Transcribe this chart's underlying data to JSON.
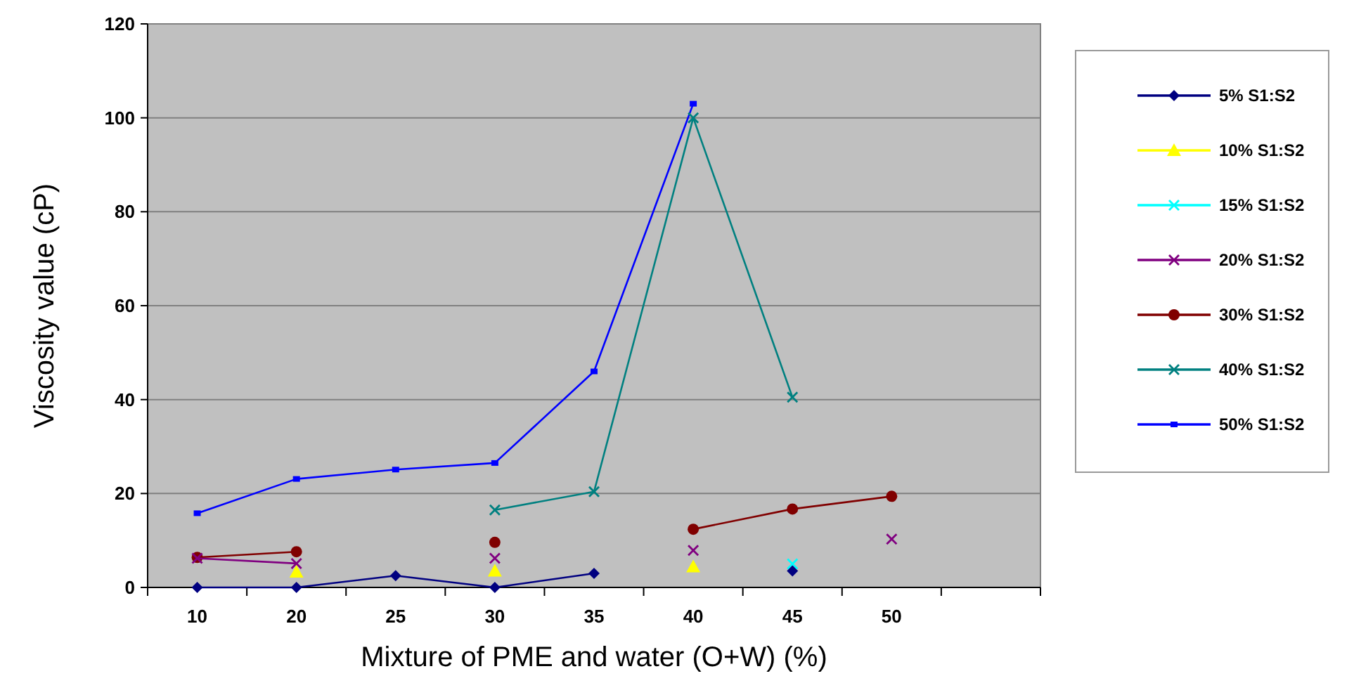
{
  "chart_data": {
    "type": "line",
    "xlabel": "Mixture of PME and water (O+W) (%)",
    "ylabel": "Viscosity value (cP)",
    "categories": [
      "10",
      "20",
      "25",
      "30",
      "35",
      "40",
      "45",
      "50",
      null
    ],
    "ylim": [
      0,
      120
    ],
    "yticks": [
      0,
      20,
      40,
      60,
      80,
      100,
      120
    ],
    "grid": "y",
    "legend": "right",
    "line_style": "solid",
    "series": [
      {
        "name": "5% S1:S2",
        "color": "#000080",
        "marker": "diamond",
        "values": [
          0,
          0,
          2.5,
          0,
          3,
          null,
          3.5,
          null,
          null
        ]
      },
      {
        "name": "10% S1:S2",
        "type": "scatter",
        "color": "#ffff00",
        "marker": "triangle",
        "values": [
          null,
          3.3,
          null,
          3.5,
          null,
          4.4,
          null,
          null,
          null
        ]
      },
      {
        "name": "15% S1:S2",
        "type": "scatter",
        "color": "#00ffff",
        "marker": "cross",
        "values": [
          null,
          null,
          null,
          null,
          null,
          null,
          5,
          null,
          null
        ]
      },
      {
        "name": "20% S1:S2",
        "color": "#800080",
        "marker": "cross",
        "values": [
          6.2,
          5.1,
          null,
          6.2,
          null,
          7.9,
          null,
          10.3,
          null
        ]
      },
      {
        "name": "30% S1:S2",
        "color": "#800000",
        "marker": "circle",
        "values": [
          6.4,
          7.6,
          null,
          9.6,
          null,
          12.4,
          16.7,
          19.4,
          null
        ]
      },
      {
        "name": "40% S1:S2",
        "color": "#008080",
        "marker": "cross",
        "values": [
          null,
          null,
          null,
          16.5,
          20.4,
          100,
          40.5,
          null,
          null
        ]
      },
      {
        "name": "50% S1:S2",
        "color": "#0000ff",
        "marker": "square",
        "values": [
          15.8,
          23.1,
          25.1,
          26.5,
          46,
          103,
          null,
          null,
          null
        ]
      }
    ]
  }
}
